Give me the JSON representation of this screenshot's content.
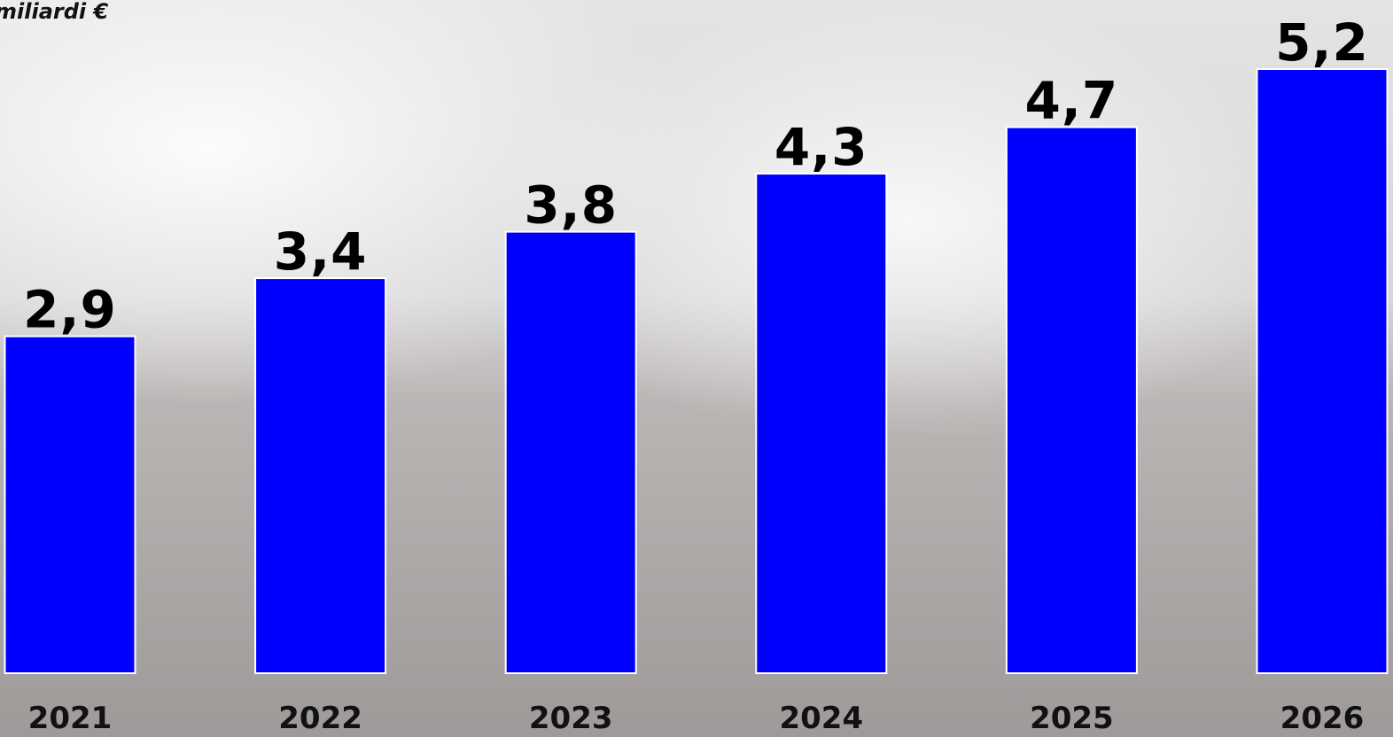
{
  "chart_data": {
    "type": "bar",
    "title": "miliardi €",
    "categories": [
      "2021",
      "2022",
      "2023",
      "2024",
      "2025",
      "2026"
    ],
    "values": [
      2.9,
      3.4,
      3.8,
      4.3,
      4.7,
      5.2
    ],
    "value_labels": [
      "2,9",
      "3,4",
      "3,8",
      "4,3",
      "4,7",
      "5,2"
    ],
    "color": "#0000ff"
  }
}
